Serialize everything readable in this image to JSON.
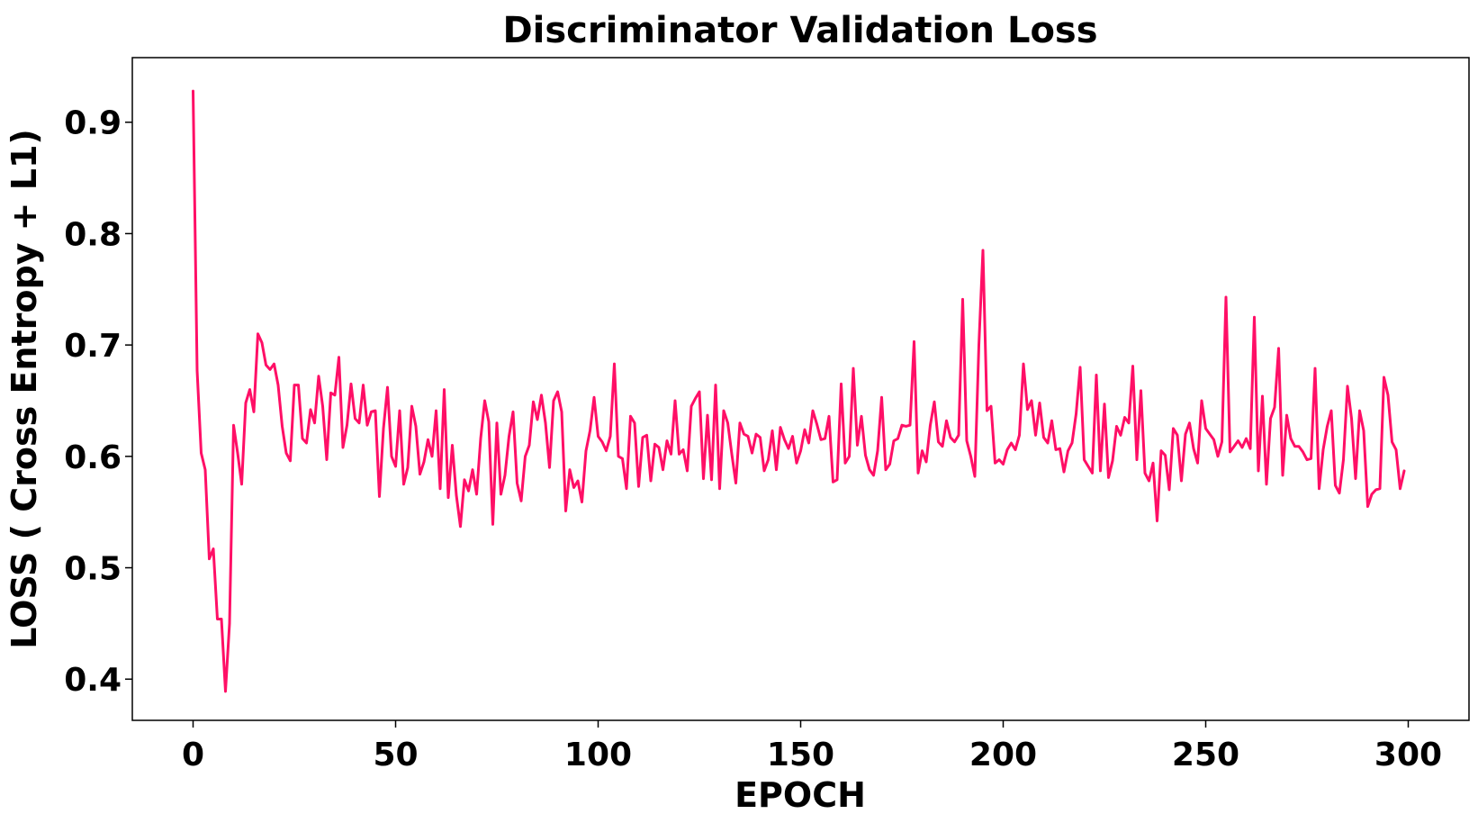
{
  "chart_data": {
    "type": "line",
    "title": "Discriminator Validation Loss",
    "xlabel": "EPOCH",
    "ylabel": "LOSS ( Cross Entropy + L1)",
    "xlim": [
      -15,
      315
    ],
    "ylim": [
      0.363,
      0.958
    ],
    "xticks": [
      0,
      50,
      100,
      150,
      200,
      250,
      300
    ],
    "yticks": [
      0.4,
      0.5,
      0.6,
      0.7,
      0.8,
      0.9
    ],
    "xtick_labels": [
      "0",
      "50",
      "100",
      "150",
      "200",
      "250",
      "300"
    ],
    "ytick_labels": [
      "0.4",
      "0.5",
      "0.6",
      "0.7",
      "0.8",
      "0.9"
    ],
    "grid": false,
    "line_color": "#ff0f66",
    "series": [
      {
        "values": [
          0.928,
          0.677,
          0.603,
          0.588,
          0.508,
          0.517,
          0.454,
          0.454,
          0.389,
          0.45,
          0.628,
          0.603,
          0.575,
          0.648,
          0.66,
          0.64,
          0.71,
          0.702,
          0.682,
          0.678,
          0.683,
          0.664,
          0.627,
          0.603,
          0.596,
          0.664,
          0.664,
          0.616,
          0.612,
          0.642,
          0.63,
          0.672,
          0.645,
          0.597,
          0.657,
          0.655,
          0.689,
          0.608,
          0.628,
          0.665,
          0.634,
          0.63,
          0.664,
          0.628,
          0.64,
          0.641,
          0.564,
          0.625,
          0.662,
          0.6,
          0.591,
          0.641,
          0.575,
          0.59,
          0.645,
          0.627,
          0.584,
          0.595,
          0.615,
          0.6,
          0.641,
          0.571,
          0.66,
          0.563,
          0.61,
          0.565,
          0.537,
          0.579,
          0.569,
          0.588,
          0.566,
          0.616,
          0.65,
          0.631,
          0.539,
          0.63,
          0.566,
          0.583,
          0.618,
          0.64,
          0.576,
          0.56,
          0.6,
          0.61,
          0.649,
          0.633,
          0.655,
          0.63,
          0.59,
          0.65,
          0.658,
          0.64,
          0.551,
          0.588,
          0.572,
          0.578,
          0.559,
          0.605,
          0.623,
          0.653,
          0.618,
          0.613,
          0.605,
          0.618,
          0.683,
          0.6,
          0.598,
          0.571,
          0.636,
          0.63,
          0.573,
          0.617,
          0.619,
          0.578,
          0.611,
          0.608,
          0.588,
          0.614,
          0.602,
          0.65,
          0.602,
          0.606,
          0.587,
          0.645,
          0.652,
          0.658,
          0.58,
          0.637,
          0.579,
          0.664,
          0.571,
          0.641,
          0.63,
          0.602,
          0.576,
          0.63,
          0.62,
          0.618,
          0.603,
          0.62,
          0.617,
          0.587,
          0.597,
          0.623,
          0.588,
          0.626,
          0.615,
          0.607,
          0.618,
          0.594,
          0.605,
          0.624,
          0.612,
          0.641,
          0.629,
          0.615,
          0.616,
          0.636,
          0.577,
          0.579,
          0.665,
          0.594,
          0.6,
          0.679,
          0.61,
          0.636,
          0.601,
          0.588,
          0.583,
          0.605,
          0.653,
          0.588,
          0.593,
          0.614,
          0.616,
          0.628,
          0.627,
          0.628,
          0.703,
          0.585,
          0.605,
          0.595,
          0.628,
          0.649,
          0.613,
          0.609,
          0.632,
          0.617,
          0.613,
          0.619,
          0.741,
          0.614,
          0.6,
          0.582,
          0.7,
          0.785,
          0.641,
          0.645,
          0.594,
          0.597,
          0.593,
          0.606,
          0.612,
          0.606,
          0.619,
          0.683,
          0.642,
          0.65,
          0.619,
          0.648,
          0.617,
          0.612,
          0.632,
          0.606,
          0.607,
          0.586,
          0.605,
          0.612,
          0.638,
          0.68,
          0.597,
          0.591,
          0.585,
          0.673,
          0.587,
          0.647,
          0.581,
          0.596,
          0.627,
          0.619,
          0.635,
          0.63,
          0.681,
          0.597,
          0.659,
          0.585,
          0.578,
          0.594,
          0.542,
          0.605,
          0.601,
          0.57,
          0.625,
          0.619,
          0.578,
          0.62,
          0.63,
          0.607,
          0.594,
          0.65,
          0.625,
          0.62,
          0.615,
          0.6,
          0.613,
          0.743,
          0.604,
          0.609,
          0.614,
          0.608,
          0.616,
          0.607,
          0.725,
          0.587,
          0.654,
          0.575,
          0.634,
          0.644,
          0.697,
          0.583,
          0.637,
          0.616,
          0.609,
          0.609,
          0.604,
          0.597,
          0.598,
          0.679,
          0.571,
          0.606,
          0.627,
          0.641,
          0.574,
          0.567,
          0.597,
          0.663,
          0.634,
          0.58,
          0.641,
          0.623,
          0.555,
          0.566,
          0.57,
          0.571,
          0.671,
          0.655,
          0.613,
          0.606,
          0.571,
          0.587
        ]
      }
    ]
  }
}
